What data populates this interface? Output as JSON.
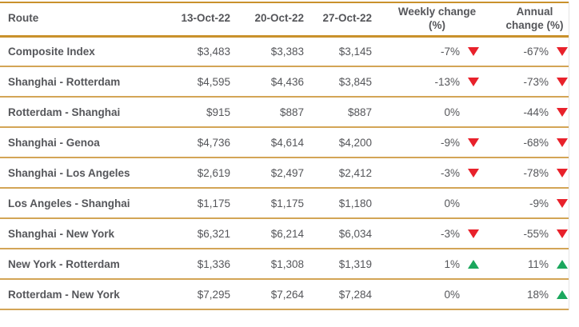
{
  "table": {
    "columns": [
      "Route",
      "13-Oct-22",
      "20-Oct-22",
      "27-Oct-22",
      "Weekly change (%)",
      "Annual change (%)"
    ],
    "rows": [
      {
        "route": "Composite Index",
        "oct13": "$3,483",
        "oct20": "$3,383",
        "oct27": "$3,145",
        "weekly": "-7%",
        "weekly_dir": "down",
        "annual": "-67%",
        "annual_dir": "down"
      },
      {
        "route": "Shanghai - Rotterdam",
        "oct13": "$4,595",
        "oct20": "$4,436",
        "oct27": "$3,845",
        "weekly": "-13%",
        "weekly_dir": "down",
        "annual": "-73%",
        "annual_dir": "down"
      },
      {
        "route": "Rotterdam - Shanghai",
        "oct13": "$915",
        "oct20": "$887",
        "oct27": "$887",
        "weekly": "0%",
        "weekly_dir": "none",
        "annual": "-44%",
        "annual_dir": "down"
      },
      {
        "route": "Shanghai - Genoa",
        "oct13": "$4,736",
        "oct20": "$4,614",
        "oct27": "$4,200",
        "weekly": "-9%",
        "weekly_dir": "down",
        "annual": "-68%",
        "annual_dir": "down"
      },
      {
        "route": "Shanghai - Los Angeles",
        "oct13": "$2,619",
        "oct20": "$2,497",
        "oct27": "$2,412",
        "weekly": "-3%",
        "weekly_dir": "down",
        "annual": "-78%",
        "annual_dir": "down"
      },
      {
        "route": "Los Angeles - Shanghai",
        "oct13": "$1,175",
        "oct20": "$1,175",
        "oct27": "$1,180",
        "weekly": "0%",
        "weekly_dir": "none",
        "annual": "-9%",
        "annual_dir": "down"
      },
      {
        "route": "Shanghai - New York",
        "oct13": "$6,321",
        "oct20": "$6,214",
        "oct27": "$6,034",
        "weekly": "-3%",
        "weekly_dir": "down",
        "annual": "-55%",
        "annual_dir": "down"
      },
      {
        "route": "New York - Rotterdam",
        "oct13": "$1,336",
        "oct20": "$1,308",
        "oct27": "$1,319",
        "weekly": "1%",
        "weekly_dir": "up",
        "annual": "11%",
        "annual_dir": "up"
      },
      {
        "route": "Rotterdam - New York",
        "oct13": "$7,295",
        "oct20": "$7,264",
        "oct27": "$7,284",
        "weekly": "0%",
        "weekly_dir": "none",
        "annual": "18%",
        "annual_dir": "up"
      }
    ]
  },
  "icons": {
    "down": "down-triangle-icon",
    "up": "up-triangle-icon"
  },
  "colors": {
    "header_border_gold": "#c9912c",
    "row_border_gold": "#d3a556",
    "text": "#55565a",
    "negative_red": "#e8212b",
    "positive_green": "#1ba75d"
  }
}
